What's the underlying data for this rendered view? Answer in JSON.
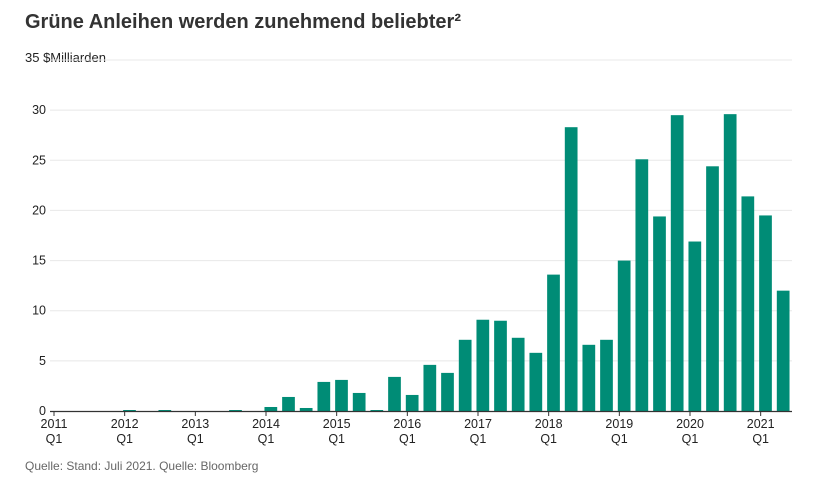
{
  "title": "Grüne Anleihen werden zunehmend beliebter²",
  "source": "Quelle: Stand: Juli 2021. Quelle: Bloomberg",
  "colors": {
    "bar": "#008c76",
    "grid": "#e8e8e8",
    "axis": "#333333"
  },
  "chart_data": {
    "type": "bar",
    "title": "Grüne Anleihen werden zunehmend beliebter²",
    "ylabel": "$Milliarden",
    "top_tick_label": "35 $Milliarden",
    "ylim": [
      0,
      35
    ],
    "yticks": [
      0,
      5,
      10,
      15,
      20,
      25,
      30
    ],
    "grid": true,
    "categories": [
      "2011 Q1",
      "2011 Q2",
      "2011 Q3",
      "2011 Q4",
      "2012 Q1",
      "2012 Q2",
      "2012 Q3",
      "2012 Q4",
      "2013 Q1",
      "2013 Q2",
      "2013 Q3",
      "2013 Q4",
      "2014 Q1",
      "2014 Q2",
      "2014 Q3",
      "2014 Q4",
      "2015 Q1",
      "2015 Q2",
      "2015 Q3",
      "2015 Q4",
      "2016 Q1",
      "2016 Q2",
      "2016 Q3",
      "2016 Q4",
      "2017 Q1",
      "2017 Q2",
      "2017 Q3",
      "2017 Q4",
      "2018 Q1",
      "2018 Q2",
      "2018 Q3",
      "2018 Q4",
      "2019 Q1",
      "2019 Q2",
      "2019 Q3",
      "2019 Q4",
      "2020 Q1",
      "2020 Q2",
      "2020 Q3",
      "2020 Q4",
      "2021 Q1",
      "2021 Q2"
    ],
    "values": [
      0,
      0,
      0,
      0,
      0.1,
      0,
      0.1,
      0,
      0,
      0,
      0.1,
      0,
      0.4,
      1.4,
      0.3,
      2.9,
      3.1,
      1.8,
      0.1,
      3.4,
      1.6,
      4.6,
      3.8,
      7.1,
      9.1,
      9.0,
      7.3,
      5.8,
      13.6,
      28.3,
      6.6,
      7.1,
      15.0,
      25.1,
      19.4,
      29.5,
      16.9,
      24.4,
      29.6,
      21.4,
      19.5,
      12.0
    ],
    "x_tick_labels": [
      {
        "index": 0,
        "year": "2011",
        "quarter": "Q1"
      },
      {
        "index": 4,
        "year": "2012",
        "quarter": "Q1"
      },
      {
        "index": 8,
        "year": "2013",
        "quarter": "Q1"
      },
      {
        "index": 12,
        "year": "2014",
        "quarter": "Q1"
      },
      {
        "index": 16,
        "year": "2015",
        "quarter": "Q1"
      },
      {
        "index": 20,
        "year": "2016",
        "quarter": "Q1"
      },
      {
        "index": 24,
        "year": "2017",
        "quarter": "Q1"
      },
      {
        "index": 28,
        "year": "2018",
        "quarter": "Q1"
      },
      {
        "index": 32,
        "year": "2019",
        "quarter": "Q1"
      },
      {
        "index": 36,
        "year": "2020",
        "quarter": "Q1"
      },
      {
        "index": 40,
        "year": "2021",
        "quarter": "Q1"
      }
    ]
  }
}
